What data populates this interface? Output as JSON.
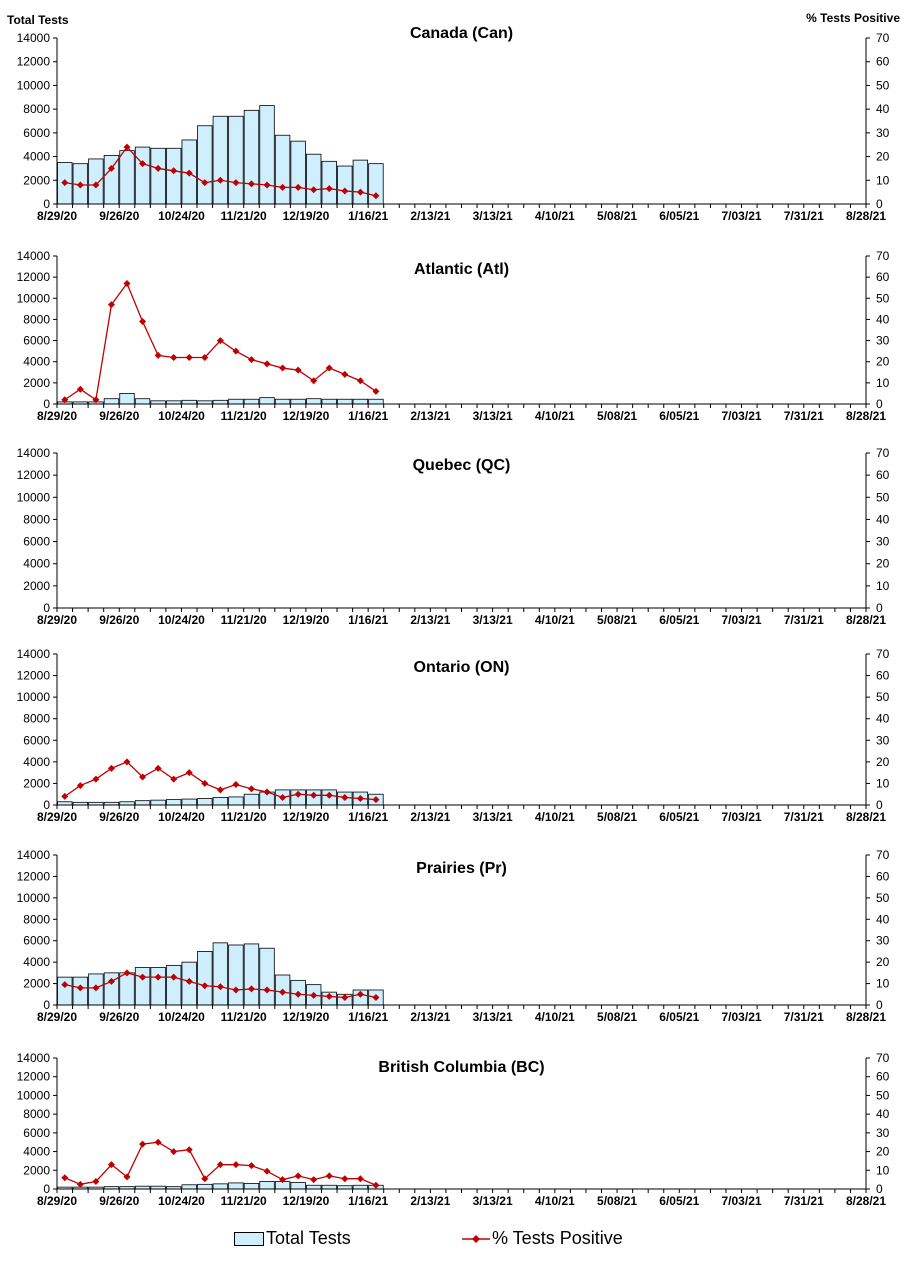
{
  "axis_titles": {
    "left": "Total Tests",
    "right": "% Tests Positive"
  },
  "legend": {
    "bars": "Total Tests",
    "line": "% Tests Positive"
  },
  "colors": {
    "bar_fill": "#cfefff",
    "bar_stroke": "#000000",
    "line": "#c00000",
    "axis": "#000000"
  },
  "chart_data": [
    {
      "type": "bar",
      "title": "Canada (Can)",
      "x_tick_labels": [
        "8/29/20",
        "9/26/20",
        "10/24/20",
        "11/21/20",
        "12/19/20",
        "1/16/21",
        "2/13/21",
        "3/13/21",
        "4/10/21",
        "5/08/21",
        "6/05/21",
        "7/03/21",
        "7/31/21",
        "8/28/21"
      ],
      "y_ticks": [
        0,
        2000,
        4000,
        6000,
        8000,
        10000,
        12000,
        14000
      ],
      "y2_ticks": [
        0,
        10,
        20,
        30,
        40,
        50,
        60,
        70
      ],
      "ylim": [
        0,
        14000
      ],
      "y2lim": [
        0,
        70
      ],
      "series": [
        {
          "name": "Total Tests",
          "axis": "left",
          "values": [
            3500,
            3400,
            3800,
            4100,
            4500,
            4800,
            4700,
            4700,
            5400,
            6600,
            7400,
            7400,
            7900,
            8300,
            5800,
            5300,
            4200,
            3600,
            3200,
            3700,
            3400
          ]
        },
        {
          "name": "% Tests Positive",
          "axis": "right",
          "values": [
            9,
            8,
            8,
            15,
            24,
            17,
            15,
            14,
            13,
            9,
            10,
            9,
            8.5,
            8,
            7,
            7,
            6,
            6.5,
            5.5,
            5,
            3.5
          ]
        }
      ]
    },
    {
      "type": "bar",
      "title": "Atlantic (Atl)",
      "x_tick_labels": [
        "8/29/20",
        "9/26/20",
        "10/24/20",
        "11/21/20",
        "12/19/20",
        "1/16/21",
        "2/13/21",
        "3/13/21",
        "4/10/21",
        "5/08/21",
        "6/05/21",
        "7/03/21",
        "7/31/21",
        "8/28/21"
      ],
      "y_ticks": [
        0,
        2000,
        4000,
        6000,
        8000,
        10000,
        12000,
        14000
      ],
      "y2_ticks": [
        0,
        10,
        20,
        30,
        40,
        50,
        60,
        70
      ],
      "ylim": [
        0,
        14000
      ],
      "y2lim": [
        0,
        70
      ],
      "series": [
        {
          "name": "Total Tests",
          "axis": "left",
          "values": [
            200,
            200,
            200,
            500,
            1000,
            500,
            300,
            300,
            350,
            300,
            350,
            450,
            450,
            600,
            450,
            450,
            500,
            450,
            450,
            450,
            450
          ]
        },
        {
          "name": "% Tests Positive",
          "axis": "right",
          "values": [
            2,
            7,
            2,
            47,
            57,
            39,
            23,
            22,
            22,
            22,
            30,
            25,
            21,
            19,
            17,
            16,
            11,
            17,
            14,
            11,
            6
          ]
        }
      ]
    },
    {
      "type": "bar",
      "title": "Quebec (QC)",
      "x_tick_labels": [
        "8/29/20",
        "9/26/20",
        "10/24/20",
        "11/21/20",
        "12/19/20",
        "1/16/21",
        "2/13/21",
        "3/13/21",
        "4/10/21",
        "5/08/21",
        "6/05/21",
        "7/03/21",
        "7/31/21",
        "8/28/21"
      ],
      "y_ticks": [
        0,
        2000,
        4000,
        6000,
        8000,
        10000,
        12000,
        14000
      ],
      "y2_ticks": [
        0,
        10,
        20,
        30,
        40,
        50,
        60,
        70
      ],
      "ylim": [
        0,
        14000
      ],
      "y2lim": [
        0,
        70
      ],
      "series": []
    },
    {
      "type": "bar",
      "title": "Ontario (ON)",
      "x_tick_labels": [
        "8/29/20",
        "9/26/20",
        "10/24/20",
        "11/21/20",
        "12/19/20",
        "1/16/21",
        "2/13/21",
        "3/13/21",
        "4/10/21",
        "5/08/21",
        "6/05/21",
        "7/03/21",
        "7/31/21",
        "8/28/21"
      ],
      "y_ticks": [
        0,
        2000,
        4000,
        6000,
        8000,
        10000,
        12000,
        14000
      ],
      "y2_ticks": [
        0,
        10,
        20,
        30,
        40,
        50,
        60,
        70
      ],
      "ylim": [
        0,
        14000
      ],
      "y2lim": [
        0,
        70
      ],
      "series": [
        {
          "name": "Total Tests",
          "axis": "left",
          "values": [
            300,
            250,
            250,
            250,
            300,
            400,
            450,
            500,
            550,
            600,
            700,
            750,
            1000,
            1200,
            1400,
            1400,
            1400,
            1400,
            1200,
            1200,
            1000
          ]
        },
        {
          "name": "% Tests Positive",
          "axis": "right",
          "values": [
            4,
            9,
            12,
            17,
            20,
            13,
            17,
            12,
            15,
            10,
            7,
            9.5,
            7.5,
            6,
            3.5,
            5,
            4.5,
            4.5,
            3.5,
            3,
            2.5
          ]
        }
      ]
    },
    {
      "type": "bar",
      "title": "Prairies (Pr)",
      "x_tick_labels": [
        "8/29/20",
        "9/26/20",
        "10/24/20",
        "11/21/20",
        "12/19/20",
        "1/16/21",
        "2/13/21",
        "3/13/21",
        "4/10/21",
        "5/08/21",
        "6/05/21",
        "7/03/21",
        "7/31/21",
        "8/28/21"
      ],
      "y_ticks": [
        0,
        2000,
        4000,
        6000,
        8000,
        10000,
        12000,
        14000
      ],
      "y2_ticks": [
        0,
        10,
        20,
        30,
        40,
        50,
        60,
        70
      ],
      "ylim": [
        0,
        14000
      ],
      "y2lim": [
        0,
        70
      ],
      "series": [
        {
          "name": "Total Tests",
          "axis": "left",
          "values": [
            2600,
            2600,
            2900,
            3000,
            3000,
            3500,
            3500,
            3700,
            4000,
            5000,
            5800,
            5600,
            5700,
            5300,
            2800,
            2300,
            1900,
            1200,
            1000,
            1400,
            1400
          ]
        },
        {
          "name": "% Tests Positive",
          "axis": "right",
          "values": [
            9.5,
            8,
            8,
            11,
            15,
            13,
            13,
            13,
            11,
            9,
            8.5,
            7,
            7.5,
            7,
            6,
            5,
            4.5,
            4,
            3.5,
            5,
            3.5
          ]
        }
      ]
    },
    {
      "type": "bar",
      "title": "British Columbia (BC)",
      "x_tick_labels": [
        "8/29/20",
        "9/26/20",
        "10/24/20",
        "11/21/20",
        "12/19/20",
        "1/16/21",
        "2/13/21",
        "3/13/21",
        "4/10/21",
        "5/08/21",
        "6/05/21",
        "7/03/21",
        "7/31/21",
        "8/28/21"
      ],
      "y_ticks": [
        0,
        2000,
        4000,
        6000,
        8000,
        10000,
        12000,
        14000
      ],
      "y2_ticks": [
        0,
        10,
        20,
        30,
        40,
        50,
        60,
        70
      ],
      "ylim": [
        0,
        14000
      ],
      "y2lim": [
        0,
        70
      ],
      "series": [
        {
          "name": "Total Tests",
          "axis": "left",
          "values": [
            200,
            200,
            200,
            250,
            250,
            300,
            300,
            250,
            450,
            500,
            550,
            650,
            600,
            800,
            800,
            700,
            400,
            400,
            350,
            400,
            400
          ]
        },
        {
          "name": "% Tests Positive",
          "axis": "right",
          "values": [
            6,
            2.5,
            4,
            13,
            6.5,
            24,
            25,
            20,
            21,
            5.5,
            13,
            13,
            12.5,
            9.5,
            5,
            7,
            5,
            7,
            5.5,
            5.5,
            2
          ]
        }
      ]
    }
  ]
}
